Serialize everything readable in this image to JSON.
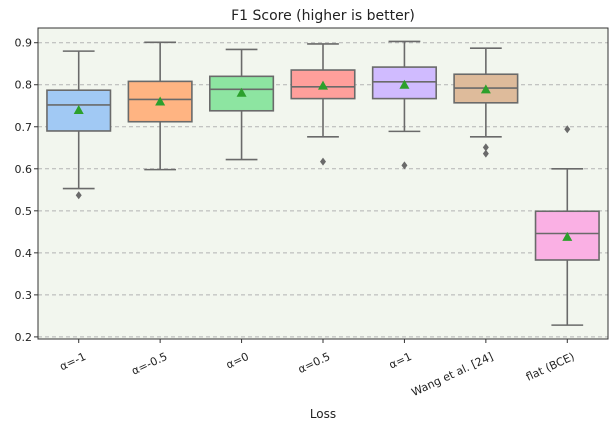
{
  "chart_data": {
    "type": "box",
    "title": "F1 Score (higher is better)",
    "xlabel": "Loss",
    "ylabel": "",
    "ylim": [
      0.195,
      0.935
    ],
    "yticks": [
      0.2,
      0.3,
      0.4,
      0.5,
      0.6,
      0.7,
      0.8,
      0.9
    ],
    "ytick_labels": [
      "0.2",
      "0.3",
      "0.4",
      "0.5",
      "0.6",
      "0.7",
      "0.8",
      "0.9"
    ],
    "grid": true,
    "background": "#f2f6ee",
    "categories": [
      "α=-1",
      "α=-0.5",
      "α=0",
      "α=0.5",
      "α=1",
      "Wang et al. [24]",
      "flat (BCE)"
    ],
    "boxes": [
      {
        "name": "α=-1",
        "whislo": 0.553,
        "q1": 0.69,
        "med": 0.752,
        "q3": 0.787,
        "whishi": 0.88,
        "mean": 0.74,
        "fliers": [
          0.537
        ],
        "color": "#a1c9f4"
      },
      {
        "name": "α=-0.5",
        "whislo": 0.598,
        "q1": 0.712,
        "med": 0.765,
        "q3": 0.808,
        "whishi": 0.901,
        "mean": 0.76,
        "fliers": [],
        "color": "#ffb482"
      },
      {
        "name": "α=0",
        "whislo": 0.622,
        "q1": 0.738,
        "med": 0.789,
        "q3": 0.82,
        "whishi": 0.884,
        "mean": 0.781,
        "fliers": [],
        "color": "#8de5a1"
      },
      {
        "name": "α=0.5",
        "whislo": 0.676,
        "q1": 0.767,
        "med": 0.795,
        "q3": 0.835,
        "whishi": 0.897,
        "mean": 0.798,
        "fliers": [
          0.617
        ],
        "color": "#ff9f9b"
      },
      {
        "name": "α=1",
        "whislo": 0.689,
        "q1": 0.767,
        "med": 0.807,
        "q3": 0.842,
        "whishi": 0.903,
        "mean": 0.8,
        "fliers": [
          0.608
        ],
        "color": "#d0bbff"
      },
      {
        "name": "Wang et al. [24]",
        "whislo": 0.676,
        "q1": 0.757,
        "med": 0.792,
        "q3": 0.825,
        "whishi": 0.887,
        "mean": 0.789,
        "fliers": [
          0.651,
          0.636
        ],
        "color": "#debb9b"
      },
      {
        "name": "flat (BCE)",
        "whislo": 0.228,
        "q1": 0.383,
        "med": 0.446,
        "q3": 0.499,
        "whishi": 0.6,
        "mean": 0.438,
        "fliers": [
          0.694
        ],
        "color": "#fab0e4"
      }
    ]
  }
}
